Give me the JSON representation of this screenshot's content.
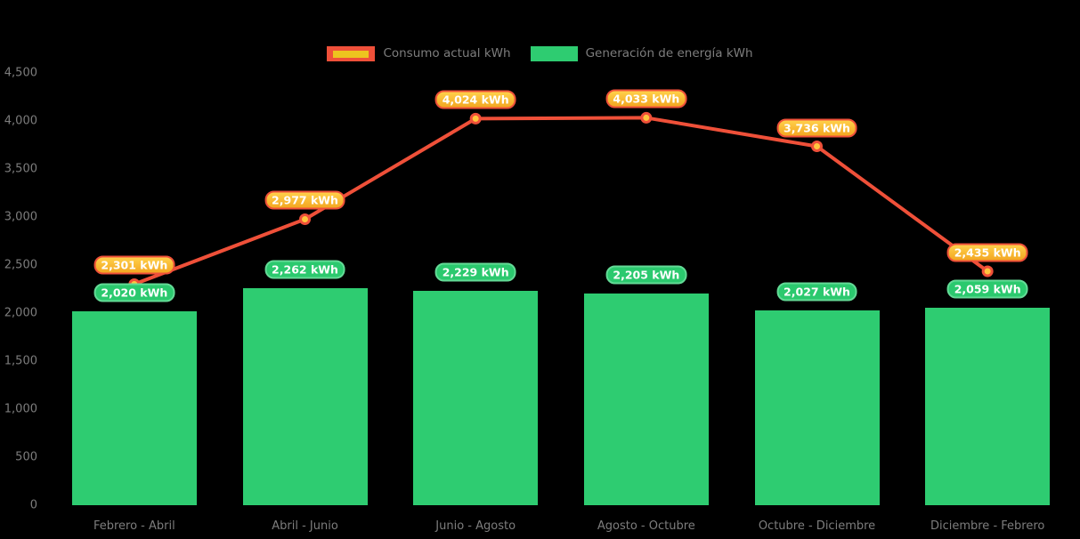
{
  "chart_data": {
    "type": "combo",
    "categories": [
      "Febrero - Abril",
      "Abril - Junio",
      "Junio - Agosto",
      "Agosto - Octubre",
      "Octubre - Diciembre",
      "Diciembre - Febrero"
    ],
    "series": [
      {
        "name": "Consumo actual kWh",
        "type": "line",
        "values": [
          2301,
          2977,
          4024,
          4033,
          3736,
          2435
        ],
        "labels": [
          "2,301 kWh",
          "2,977 kWh",
          "4,024 kWh",
          "4,033 kWh",
          "3,736 kWh",
          "2,435 kWh"
        ]
      },
      {
        "name": "Generación de energía kWh",
        "type": "bar",
        "values": [
          2020,
          2262,
          2229,
          2205,
          2027,
          2059
        ],
        "labels": [
          "2,020 kWh",
          "2,262 kWh",
          "2,229 kWh",
          "2,205 kWh",
          "2,027 kWh",
          "2,059 kWh"
        ]
      }
    ],
    "ylim": [
      0,
      4500
    ],
    "ytick_step": 500,
    "ytick_labels": [
      "0",
      "500",
      "1,000",
      "1,500",
      "2,000",
      "2,500",
      "3,000",
      "3,500",
      "4,000",
      "4,500"
    ],
    "grid": "off",
    "legend_position": "top",
    "colors": {
      "background": "#000000",
      "bar": "#2ecc71",
      "line": "#ef5039",
      "point_fill": "#ffc53e",
      "legend_swatch_inner": "#edc41f",
      "line_label_bg_top": "#ffd04a",
      "line_label_bg_bottom": "#f3a722",
      "bar_label_bg": "#2bc96e",
      "bar_label_border": "#63da96",
      "label_text": "#ffffff",
      "axis_text": "#7d7d7d",
      "legend_text": "#7d7d7d"
    }
  }
}
